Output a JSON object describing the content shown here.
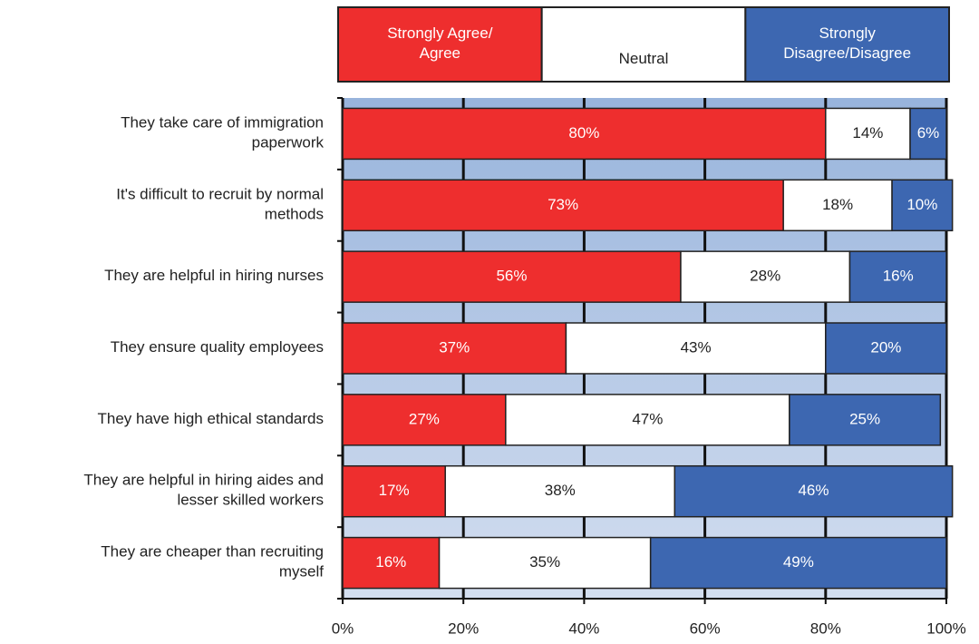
{
  "chart_data": {
    "type": "stacked-bar-horizontal",
    "categories": [
      "They take care of immigration\npaperwork",
      "It's difficult to recruit by normal\nmethods",
      "They are helpful in hiring nurses",
      "They ensure quality employees",
      "They have high ethical standards",
      "They are helpful in hiring aides and\nlesser skilled workers",
      "They are cheaper than recruiting\nmyself"
    ],
    "series": [
      {
        "name": "Strongly Agree/\nAgree",
        "color": "#ee2e2e",
        "values": [
          80,
          73,
          56,
          37,
          27,
          17,
          16
        ],
        "value_labels": [
          "80%",
          "73%",
          "56%",
          "37%",
          "27%",
          "17%",
          "16%"
        ]
      },
      {
        "name": "Neutral",
        "color": "#ffffff",
        "values": [
          14,
          18,
          28,
          43,
          47,
          38,
          35
        ],
        "value_labels": [
          "14%",
          "18%",
          "28%",
          "43%",
          "47%",
          "38%",
          "35%"
        ]
      },
      {
        "name": "Strongly\nDisagree/Disagree",
        "color": "#3d67b1",
        "values": [
          6,
          10,
          16,
          20,
          25,
          46,
          49
        ],
        "value_labels": [
          "6%",
          "10%",
          "16%",
          "20%",
          "25%",
          "46%",
          "49%"
        ]
      }
    ],
    "xlim": [
      0,
      100
    ],
    "xticks": [
      {
        "value": 0,
        "label": "0%"
      },
      {
        "value": 20,
        "label": "20%"
      },
      {
        "value": 40,
        "label": "40%"
      },
      {
        "value": 60,
        "label": "60%"
      },
      {
        "value": 80,
        "label": "80%"
      },
      {
        "value": 100,
        "label": "100%"
      }
    ],
    "grid": true,
    "legend": "top"
  }
}
